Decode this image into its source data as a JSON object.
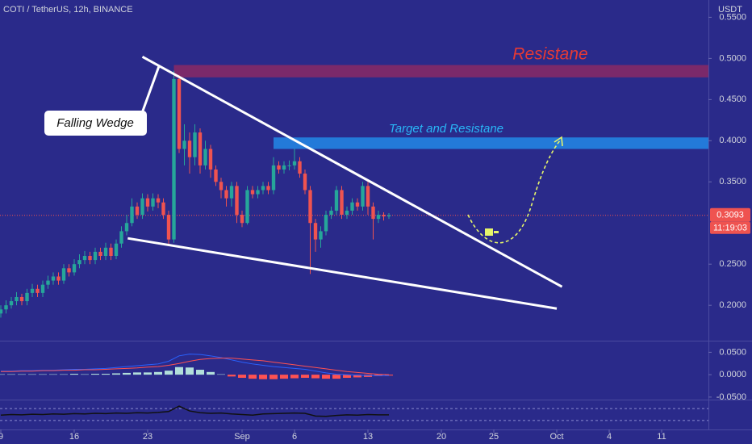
{
  "chart_data": {
    "type": "candlestick",
    "title": "COTI / TetherUS, 12h, BINANCE",
    "currency": "USDT",
    "up_color": "#26a69a",
    "down_color": "#ef5350",
    "xlim": [
      -0.077,
      67.46
    ],
    "xticks": [
      {
        "value": 0,
        "label": "9"
      },
      {
        "value": 7,
        "label": "16"
      },
      {
        "value": 14,
        "label": "23"
      },
      {
        "value": 23,
        "label": "Sep"
      },
      {
        "value": 28,
        "label": "6"
      },
      {
        "value": 35,
        "label": "13"
      },
      {
        "value": 42,
        "label": "20"
      },
      {
        "value": 47,
        "label": "25"
      },
      {
        "value": 53,
        "label": "Oct"
      },
      {
        "value": 58,
        "label": "4"
      },
      {
        "value": 63,
        "label": "11"
      }
    ],
    "ylim": [
      0.157,
      0.571
    ],
    "yticks": [
      {
        "value": 0.55,
        "label": "0.5500"
      },
      {
        "value": 0.5,
        "label": "0.5000"
      },
      {
        "value": 0.45,
        "label": "0.4500"
      },
      {
        "value": 0.4,
        "label": "0.4000"
      },
      {
        "value": 0.35,
        "label": "0.3500"
      },
      {
        "value": 0.25,
        "label": "0.2500"
      },
      {
        "value": 0.2,
        "label": "0.2000"
      }
    ],
    "x": [
      0,
      0.5,
      1,
      1.5,
      2,
      2.5,
      3,
      3.5,
      4,
      4.5,
      5,
      5.5,
      6,
      6.5,
      7,
      7.5,
      8,
      8.5,
      9,
      9.5,
      10,
      10.5,
      11,
      11.5,
      12,
      12.5,
      13,
      13.5,
      14,
      14.5,
      15,
      15.5,
      16,
      16.5,
      17,
      17.5,
      18,
      18.5,
      19,
      19.5,
      20,
      20.5,
      21,
      21.5,
      22,
      22.5,
      23,
      23.5,
      24,
      24.5,
      25,
      25.5,
      26,
      26.5,
      27,
      27.5,
      28,
      28.5,
      29,
      29.5,
      30,
      30.5,
      31,
      31.5,
      32,
      32.5,
      33,
      33.5,
      34,
      34.5,
      35,
      35.5,
      36,
      36.5,
      37
    ],
    "candles": {
      "open": [
        0.19,
        0.195,
        0.2,
        0.205,
        0.21,
        0.205,
        0.215,
        0.22,
        0.215,
        0.225,
        0.23,
        0.235,
        0.23,
        0.245,
        0.24,
        0.25,
        0.255,
        0.26,
        0.255,
        0.265,
        0.26,
        0.27,
        0.26,
        0.275,
        0.29,
        0.3,
        0.32,
        0.31,
        0.33,
        0.32,
        0.33,
        0.325,
        0.31,
        0.28,
        0.475,
        0.39,
        0.4,
        0.38,
        0.41,
        0.37,
        0.39,
        0.365,
        0.35,
        0.34,
        0.33,
        0.345,
        0.31,
        0.3,
        0.34,
        0.335,
        0.34,
        0.345,
        0.34,
        0.37,
        0.365,
        0.37,
        0.37,
        0.375,
        0.36,
        0.34,
        0.3,
        0.28,
        0.29,
        0.31,
        0.315,
        0.34,
        0.31,
        0.315,
        0.325,
        0.32,
        0.345,
        0.32,
        0.305,
        0.31,
        0.308
      ],
      "high": [
        0.2,
        0.206,
        0.21,
        0.216,
        0.214,
        0.22,
        0.226,
        0.225,
        0.23,
        0.236,
        0.24,
        0.24,
        0.25,
        0.25,
        0.256,
        0.262,
        0.266,
        0.265,
        0.27,
        0.27,
        0.276,
        0.275,
        0.28,
        0.296,
        0.31,
        0.33,
        0.325,
        0.336,
        0.335,
        0.336,
        0.335,
        0.33,
        0.315,
        0.485,
        0.48,
        0.42,
        0.41,
        0.42,
        0.415,
        0.4,
        0.395,
        0.37,
        0.355,
        0.345,
        0.35,
        0.35,
        0.315,
        0.345,
        0.345,
        0.345,
        0.35,
        0.35,
        0.38,
        0.375,
        0.375,
        0.376,
        0.39,
        0.38,
        0.365,
        0.345,
        0.305,
        0.296,
        0.315,
        0.32,
        0.345,
        0.345,
        0.32,
        0.33,
        0.33,
        0.35,
        0.35,
        0.325,
        0.315,
        0.313,
        0.312
      ],
      "low": [
        0.185,
        0.19,
        0.196,
        0.2,
        0.2,
        0.2,
        0.21,
        0.21,
        0.21,
        0.22,
        0.225,
        0.225,
        0.226,
        0.235,
        0.236,
        0.245,
        0.25,
        0.25,
        0.25,
        0.255,
        0.255,
        0.255,
        0.256,
        0.27,
        0.285,
        0.296,
        0.305,
        0.305,
        0.314,
        0.315,
        0.318,
        0.305,
        0.272,
        0.276,
        0.385,
        0.37,
        0.36,
        0.37,
        0.36,
        0.365,
        0.355,
        0.345,
        0.33,
        0.32,
        0.32,
        0.3,
        0.295,
        0.298,
        0.33,
        0.33,
        0.335,
        0.335,
        0.335,
        0.36,
        0.36,
        0.364,
        0.365,
        0.355,
        0.335,
        0.238,
        0.265,
        0.27,
        0.285,
        0.305,
        0.31,
        0.305,
        0.305,
        0.31,
        0.315,
        0.315,
        0.31,
        0.28,
        0.3,
        0.303,
        0.305
      ],
      "close": [
        0.195,
        0.2,
        0.205,
        0.21,
        0.205,
        0.215,
        0.22,
        0.215,
        0.225,
        0.23,
        0.235,
        0.23,
        0.245,
        0.24,
        0.25,
        0.255,
        0.26,
        0.255,
        0.265,
        0.26,
        0.27,
        0.26,
        0.275,
        0.29,
        0.3,
        0.32,
        0.31,
        0.33,
        0.32,
        0.33,
        0.325,
        0.31,
        0.28,
        0.475,
        0.39,
        0.4,
        0.38,
        0.41,
        0.37,
        0.39,
        0.365,
        0.35,
        0.34,
        0.33,
        0.345,
        0.31,
        0.3,
        0.34,
        0.335,
        0.34,
        0.345,
        0.34,
        0.37,
        0.365,
        0.37,
        0.37,
        0.375,
        0.36,
        0.34,
        0.3,
        0.28,
        0.29,
        0.31,
        0.315,
        0.34,
        0.31,
        0.315,
        0.325,
        0.32,
        0.345,
        0.32,
        0.305,
        0.31,
        0.308,
        0.3093
      ]
    },
    "last_price": 0.3093,
    "last_price_color": "#ef5350",
    "countdown": "11:19:03",
    "zones": [
      {
        "label": "Resistane",
        "from": 0.477,
        "to": 0.492,
        "x_from": 16.5,
        "color": "rgba(190,40,80,0.55)",
        "label_color": "#e53935"
      },
      {
        "label": "Target and Resistane",
        "from": 0.39,
        "to": 0.404,
        "x_from": 26,
        "color": "rgba(33,150,243,0.75)",
        "label_color": "#29b6f6"
      }
    ],
    "lines": [
      {
        "points": [
          [
            13.5,
            0.502
          ],
          [
            53.5,
            0.2225
          ]
        ],
        "color": "#ffffff"
      },
      {
        "points": [
          [
            12.1,
            0.2814
          ],
          [
            53,
            0.196
          ]
        ],
        "color": "#ffffff"
      }
    ],
    "annotation": "Falling Wedge",
    "macd": {
      "x": [
        0,
        1,
        2,
        3,
        4,
        5,
        6,
        7,
        8,
        9,
        10,
        11,
        12,
        13,
        14,
        15,
        16,
        17,
        18,
        19,
        20,
        21,
        22,
        23,
        24,
        25,
        26,
        27,
        28,
        29,
        30,
        31,
        32,
        33,
        34,
        35,
        36,
        37
      ],
      "ylim": [
        -0.0556,
        0.0741
      ],
      "yticks": [
        {
          "value": 0.05,
          "label": "0.0500"
        },
        {
          "value": 0,
          "label": "0.0000"
        },
        {
          "value": -0.05,
          "label": "-0.0500"
        }
      ],
      "line": [
        0.008,
        0.008,
        0.009,
        0.009,
        0.01,
        0.01,
        0.011,
        0.012,
        0.012,
        0.013,
        0.014,
        0.016,
        0.018,
        0.02,
        0.022,
        0.024,
        0.03,
        0.042,
        0.046,
        0.045,
        0.042,
        0.038,
        0.033,
        0.028,
        0.024,
        0.021,
        0.018,
        0.016,
        0.014,
        0.012,
        0.008,
        0.004,
        0.001,
        0,
        -0.001,
        -0.002,
        -0.002,
        -0.002
      ],
      "signal": [
        0.007,
        0.007,
        0.008,
        0.008,
        0.009,
        0.009,
        0.01,
        0.01,
        0.011,
        0.011,
        0.012,
        0.013,
        0.014,
        0.015,
        0.017,
        0.018,
        0.021,
        0.025,
        0.03,
        0.034,
        0.036,
        0.037,
        0.037,
        0.035,
        0.033,
        0.031,
        0.028,
        0.025,
        0.022,
        0.019,
        0.016,
        0.013,
        0.01,
        0.007,
        0.005,
        0.003,
        0.001,
        0
      ],
      "histogram": [
        0.001,
        0.001,
        0.001,
        0.001,
        0.001,
        0.001,
        0.001,
        0.002,
        0.001,
        0.002,
        0.002,
        0.003,
        0.004,
        0.005,
        0.005,
        0.006,
        0.009,
        0.017,
        0.016,
        0.011,
        0.006,
        0.001,
        -0.004,
        -0.007,
        -0.009,
        -0.01,
        -0.01,
        -0.009,
        -0.008,
        -0.007,
        -0.008,
        -0.009,
        -0.009,
        -0.007,
        -0.006,
        -0.005,
        -0.003,
        -0.002
      ],
      "line_color": "#2962ff",
      "signal_color": "#ff5252",
      "up_color": "#b2dfdb",
      "down_color": "#ff5252"
    },
    "rsi": {
      "x": [
        0,
        1,
        2,
        3,
        4,
        5,
        6,
        7,
        8,
        9,
        10,
        11,
        12,
        13,
        14,
        15,
        16,
        17,
        18,
        19,
        20,
        21,
        22,
        23,
        24,
        25,
        26,
        27,
        28,
        29,
        30,
        31,
        32,
        33,
        34,
        35,
        36,
        37
      ],
      "ylim": [
        0,
        100
      ],
      "bands": [
        30,
        70
      ],
      "values": [
        48,
        50,
        49,
        51,
        50,
        52,
        51,
        53,
        52,
        54,
        53,
        55,
        54,
        56,
        55,
        57,
        60,
        78,
        62,
        56,
        54,
        55,
        52,
        50,
        48,
        52,
        53,
        54,
        55,
        54,
        45,
        44,
        47,
        49,
        48,
        50,
        49,
        49
      ],
      "color": "#111111"
    }
  }
}
